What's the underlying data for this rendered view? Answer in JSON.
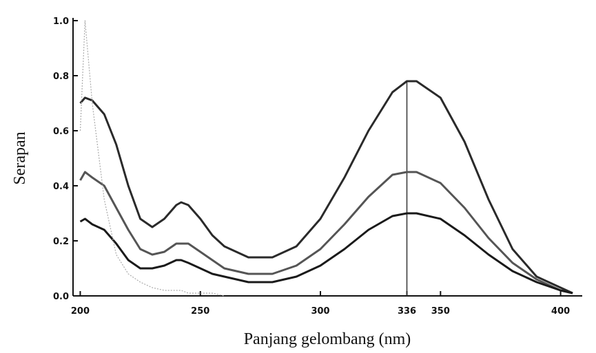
{
  "chart_data": {
    "type": "line",
    "x_label": "Panjang gelombang (nm)",
    "y_label": "Serapan",
    "x": [
      200,
      202,
      205,
      210,
      215,
      220,
      225,
      230,
      235,
      240,
      242,
      245,
      250,
      255,
      260,
      270,
      280,
      290,
      300,
      310,
      320,
      330,
      336,
      340,
      350,
      360,
      370,
      380,
      390,
      400,
      405
    ],
    "series": [
      {
        "color": "#2a2a2a",
        "values": [
          0.7,
          0.72,
          0.71,
          0.66,
          0.55,
          0.4,
          0.28,
          0.25,
          0.28,
          0.33,
          0.34,
          0.33,
          0.28,
          0.22,
          0.18,
          0.14,
          0.14,
          0.18,
          0.28,
          0.43,
          0.6,
          0.74,
          0.78,
          0.78,
          0.72,
          0.56,
          0.35,
          0.17,
          0.07,
          0.03,
          0.01
        ]
      },
      {
        "color": "#555555",
        "values": [
          0.42,
          0.45,
          0.43,
          0.4,
          0.32,
          0.24,
          0.17,
          0.15,
          0.16,
          0.19,
          0.19,
          0.19,
          0.16,
          0.13,
          0.1,
          0.08,
          0.08,
          0.11,
          0.17,
          0.26,
          0.36,
          0.44,
          0.45,
          0.45,
          0.41,
          0.32,
          0.21,
          0.12,
          0.06,
          0.02,
          0.01
        ]
      },
      {
        "color": "#1a1a1a",
        "values": [
          0.27,
          0.28,
          0.26,
          0.24,
          0.19,
          0.13,
          0.1,
          0.1,
          0.11,
          0.13,
          0.13,
          0.12,
          0.1,
          0.08,
          0.07,
          0.05,
          0.05,
          0.07,
          0.11,
          0.17,
          0.24,
          0.29,
          0.3,
          0.3,
          0.28,
          0.22,
          0.15,
          0.09,
          0.05,
          0.02,
          0.01
        ]
      },
      {
        "color": "#aaaaaa",
        "values": [
          0.6,
          1.0,
          0.7,
          0.35,
          0.15,
          0.08,
          0.05,
          0.03,
          0.02,
          0.02,
          0.02,
          0.01,
          0.01,
          0.01,
          0.0,
          null,
          null,
          null,
          null,
          null,
          null,
          null,
          null,
          null,
          null,
          null,
          null,
          null,
          null,
          null,
          null
        ]
      }
    ],
    "xlim": [
      197,
      409
    ],
    "xticks": [
      200,
      250,
      300,
      336,
      350,
      400
    ],
    "ylim": [
      0,
      1.0
    ],
    "yticks": [
      {
        "value": 0,
        "label": "0.0"
      },
      0.2,
      0.4,
      0.6,
      0.8,
      {
        "value": 1.0,
        "label": "1.0"
      }
    ],
    "marker_line_x": 336
  }
}
